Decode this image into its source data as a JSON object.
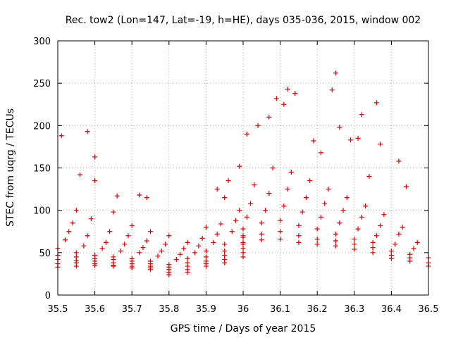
{
  "chart_data": {
    "type": "scatter",
    "title": "Rec. tow2 (Lon=147, Lat=-19, h=HE), days 035-036, 2015, window 002",
    "xlabel": "GPS time / Days of year 2015",
    "ylabel": "STEC from uqrg / TECUs",
    "xlim": [
      35.5,
      36.5
    ],
    "ylim": [
      0,
      300
    ],
    "xticks": [
      "35.5",
      "35.6",
      "35.7",
      "35.8",
      "35.9",
      "36",
      "36.1",
      "36.2",
      "36.3",
      "36.4",
      "36.5"
    ],
    "yticks": [
      "0",
      "50",
      "100",
      "150",
      "200",
      "250",
      "300"
    ],
    "grid": true,
    "marker": "plus",
    "marker_color": "#dd0000",
    "tracks": [
      {
        "x": [
          35.5,
          35.55,
          35.6,
          35.65,
          35.7,
          35.75,
          35.8,
          35.85,
          35.9,
          35.95,
          36.0
        ],
        "y": [
          33,
          34,
          35,
          34,
          32,
          30,
          24,
          27,
          34,
          38,
          45
        ]
      },
      {
        "x": [
          35.5,
          35.55,
          35.6,
          35.65,
          35.7,
          35.75,
          35.8,
          35.85,
          35.9,
          35.95,
          36.0
        ],
        "y": [
          37,
          38,
          37,
          35,
          34,
          32,
          27,
          30,
          37,
          42,
          50
        ]
      },
      {
        "x": [
          35.5,
          35.55,
          35.6,
          35.65,
          35.7,
          35.75,
          35.8,
          35.85,
          35.9,
          35.95,
          36.0
        ],
        "y": [
          42,
          41,
          40,
          38,
          37,
          34,
          30,
          34,
          40,
          47,
          55
        ]
      },
      {
        "x": [
          35.5,
          35.55,
          35.6,
          35.65,
          35.7,
          35.75,
          35.8,
          35.85,
          35.9,
          35.95,
          36.0
        ],
        "y": [
          47,
          45,
          43,
          42,
          40,
          37,
          33,
          38,
          45,
          52,
          62
        ]
      },
      {
        "x": [
          35.5,
          35.55,
          35.6,
          35.65,
          35.7,
          35.75,
          35.8,
          35.85,
          35.9,
          35.95,
          36.0
        ],
        "y": [
          55,
          50,
          47,
          45,
          43,
          40,
          36,
          43,
          52,
          60,
          70
        ]
      },
      {
        "x": [
          35.52,
          35.57,
          35.62,
          35.67,
          35.72,
          35.77,
          35.82,
          35.87,
          35.92,
          35.97
        ],
        "y": [
          65,
          58,
          55,
          52,
          50,
          46,
          42,
          50,
          62,
          75
        ]
      },
      {
        "x": [
          35.53,
          35.58,
          35.63,
          35.68,
          35.73,
          35.78,
          35.83,
          35.88,
          35.93,
          35.98
        ],
        "y": [
          75,
          70,
          62,
          60,
          56,
          52,
          48,
          58,
          72,
          88
        ]
      },
      {
        "x": [
          35.54,
          35.59,
          35.64,
          35.69,
          35.74,
          35.79,
          35.84,
          35.89,
          35.94,
          35.99
        ],
        "y": [
          85,
          90,
          75,
          70,
          64,
          60,
          55,
          67,
          84,
          100
        ]
      },
      {
        "x": [
          35.55,
          35.6,
          35.65,
          35.7,
          35.75,
          35.8,
          35.85,
          35.9,
          35.95
        ],
        "y": [
          100,
          135,
          98,
          82,
          75,
          70,
          62,
          80,
          115
        ]
      },
      {
        "x": [
          35.51,
          35.56,
          35.58,
          35.6,
          35.66,
          35.72,
          35.74,
          35.93,
          35.96,
          35.99
        ],
        "y": [
          188,
          142,
          193,
          163,
          117,
          118,
          115,
          125,
          135,
          152
        ]
      },
      {
        "x": [
          36.0,
          36.05,
          36.1,
          36.15,
          36.2,
          36.25,
          36.3,
          36.35,
          36.4,
          36.45,
          36.5
        ],
        "y": [
          60,
          65,
          66,
          62,
          60,
          58,
          54,
          50,
          43,
          40,
          34
        ]
      },
      {
        "x": [
          36.0,
          36.05,
          36.1,
          36.15,
          36.2,
          36.25,
          36.3,
          36.35,
          36.4,
          36.45,
          36.5
        ],
        "y": [
          68,
          72,
          75,
          70,
          66,
          64,
          60,
          56,
          47,
          44,
          38
        ]
      },
      {
        "x": [
          36.0,
          36.05,
          36.1,
          36.15,
          36.2,
          36.25,
          36.3,
          36.35,
          36.4,
          36.45,
          36.5
        ],
        "y": [
          78,
          85,
          88,
          82,
          78,
          72,
          66,
          62,
          52,
          48,
          44
        ]
      },
      {
        "x": [
          36.01,
          36.06,
          36.11,
          36.16,
          36.21,
          36.26,
          36.31,
          36.36,
          36.41,
          36.46
        ],
        "y": [
          92,
          100,
          105,
          98,
          92,
          85,
          78,
          70,
          60,
          55
        ]
      },
      {
        "x": [
          36.02,
          36.07,
          36.12,
          36.17,
          36.22,
          36.27,
          36.32,
          36.37,
          36.42,
          36.47
        ],
        "y": [
          108,
          120,
          125,
          115,
          108,
          100,
          92,
          82,
          72,
          62
        ]
      },
      {
        "x": [
          36.03,
          36.08,
          36.13,
          36.18,
          36.23,
          36.28,
          36.33,
          36.38,
          36.43
        ],
        "y": [
          130,
          150,
          145,
          135,
          125,
          115,
          105,
          95,
          80
        ]
      },
      {
        "x": [
          36.01,
          36.04,
          36.07,
          36.09,
          36.11,
          36.12,
          36.14,
          36.19,
          36.21,
          36.24,
          36.25,
          36.26,
          36.29,
          36.31,
          36.32,
          36.34,
          36.36,
          36.37,
          36.42,
          36.44
        ],
        "y": [
          190,
          200,
          210,
          232,
          225,
          243,
          238,
          182,
          168,
          242,
          262,
          198,
          183,
          185,
          213,
          140,
          227,
          178,
          158,
          128
        ]
      }
    ]
  }
}
